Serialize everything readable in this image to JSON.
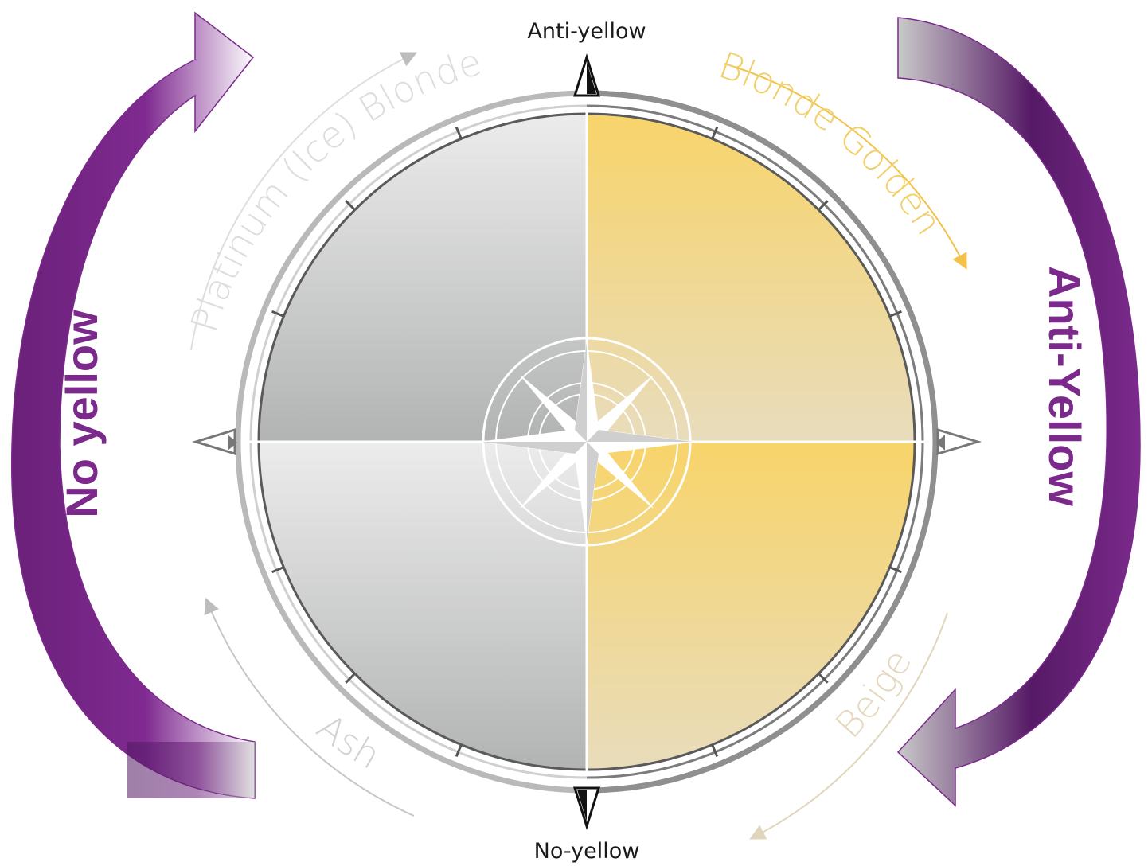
{
  "compass": {
    "top_label": "Anti-yellow",
    "bottom_label": "No-yellow"
  },
  "arc_labels": {
    "platinum": "Platinum (Ice) Blonde",
    "golden": "Blonde Golden",
    "beige": "Beige",
    "ash": "Ash"
  },
  "side_labels": {
    "left": "No yellow",
    "right": "Anti-Yellow"
  },
  "colors": {
    "purple": "#7b2a8c",
    "purple_dark": "#571a66",
    "gold": "#f7d36b",
    "gold_light": "#e9dcb7",
    "grey": "#e9e9e9",
    "grey_dark": "#b3b3b3",
    "golden_label": "#f2cf6a",
    "platinum_label": "#dcdcdc",
    "beige_label": "#e4d9bd",
    "ash_label": "#d2d2d2"
  }
}
